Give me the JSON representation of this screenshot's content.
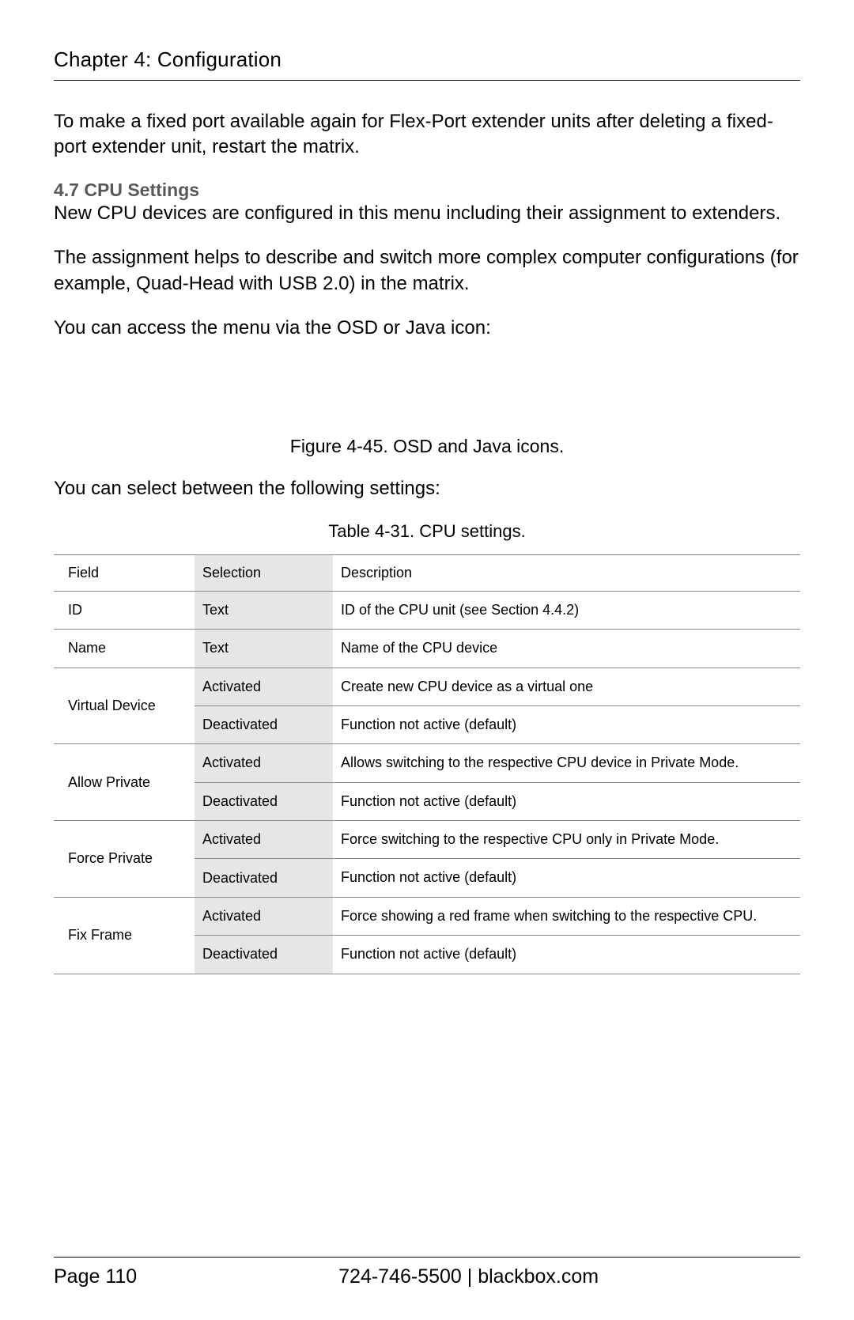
{
  "chapter_title": "Chapter 4: Configuration",
  "paragraphs": {
    "intro": "To make a fixed port available again for Flex-Port extender units after deleting a fixed-port extender unit, restart the matrix.",
    "cpu_devices": "New CPU devices are configured in this menu including their assignment to extenders.",
    "assignment": "The assignment helps to describe and switch more complex computer configurations (for example, Quad-Head with USB 2.0) in the matrix.",
    "access": "You can access the menu via the OSD or Java icon:",
    "select_settings": "You can select between the following settings:"
  },
  "section_heading": "4.7 CPU Settings",
  "figure_caption": "Figure 4-45. OSD and Java icons.",
  "table_caption": "Table 4-31. CPU settings.",
  "table": {
    "columns": [
      "Field",
      "Selection",
      "Description"
    ],
    "rows": [
      {
        "field": "ID",
        "field_rowspan": 1,
        "selection": "Text",
        "description": "ID of the CPU unit (see Section 4.4.2)"
      },
      {
        "field": "Name",
        "field_rowspan": 1,
        "selection": "Text",
        "description": "Name of the CPU device"
      },
      {
        "field": "Virtual Device",
        "field_rowspan": 2,
        "selection": "Activated",
        "description": "Create new CPU device as a virtual one"
      },
      {
        "selection": "Deactivated",
        "description": "Function not active (default)"
      },
      {
        "field": "Allow Private",
        "field_rowspan": 2,
        "selection": "Activated",
        "description": "Allows switching to the respective CPU device in Private Mode."
      },
      {
        "selection": "Deactivated",
        "description": "Function not active (default)"
      },
      {
        "field": "Force Private",
        "field_rowspan": 2,
        "selection": "Activated",
        "description": "Force switching to the respective CPU only in Private Mode."
      },
      {
        "selection": "Deactivated",
        "description": "Function not active (default)"
      },
      {
        "field": "Fix Frame",
        "field_rowspan": 2,
        "selection": "Activated",
        "description": "Force showing a red frame when switching to the respective CPU."
      },
      {
        "selection": "Deactivated",
        "description": "Function not active (default)"
      }
    ],
    "selection_bg": "#e6e6e6",
    "border_color": "#8a8a8a",
    "font_size": 18
  },
  "footer": {
    "page_label": "Page 110",
    "contact": "724-746-5500   |   blackbox.com"
  }
}
